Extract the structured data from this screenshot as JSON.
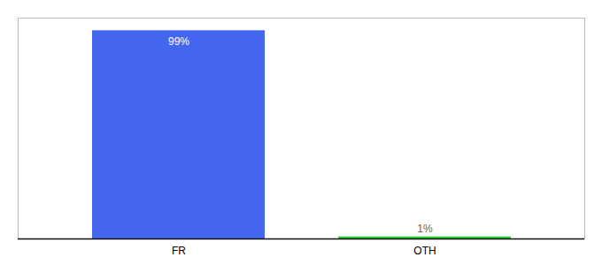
{
  "chart_data": {
    "type": "bar",
    "categories": [
      "FR",
      "OTH"
    ],
    "values": [
      99,
      1
    ],
    "colors": [
      "#4466ee",
      "#33cc33"
    ],
    "data_labels": true,
    "value_labels": [
      "99%",
      "1%"
    ],
    "ylim": [
      0,
      105
    ],
    "tick_labels": "x",
    "grid": false
  }
}
